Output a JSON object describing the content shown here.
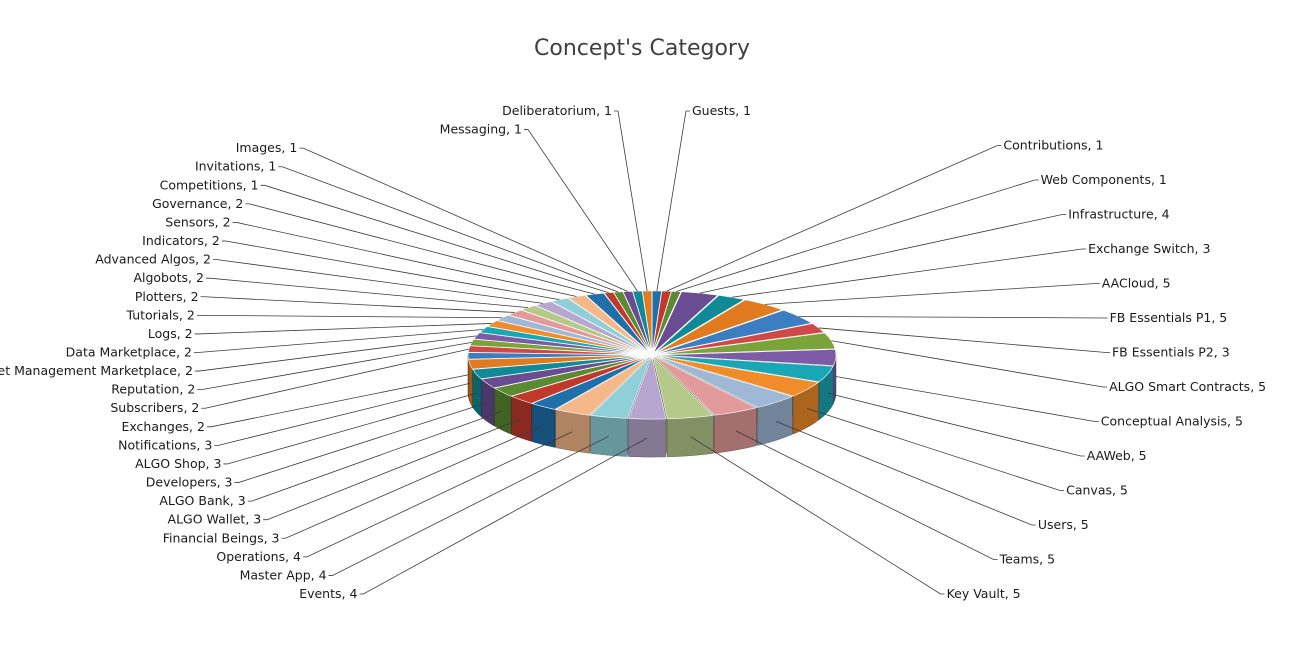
{
  "chart_data": {
    "type": "pie",
    "title": "Concept's Category",
    "legend": "none",
    "slices": [
      {
        "label": "Guests",
        "value": 1
      },
      {
        "label": "Contributions",
        "value": 1
      },
      {
        "label": "Web Components",
        "value": 1
      },
      {
        "label": "Infrastructure",
        "value": 4
      },
      {
        "label": "Exchange Switch",
        "value": 3
      },
      {
        "label": "AACloud",
        "value": 5
      },
      {
        "label": "FB Essentials  P1",
        "value": 5
      },
      {
        "label": "FB Essentials  P2",
        "value": 3
      },
      {
        "label": "ALGO Smart Contracts",
        "value": 5
      },
      {
        "label": "Conceptual Analysis",
        "value": 5
      },
      {
        "label": "AAWeb",
        "value": 5
      },
      {
        "label": "Canvas",
        "value": 5
      },
      {
        "label": "Users",
        "value": 5
      },
      {
        "label": "Teams",
        "value": 5
      },
      {
        "label": "Key Vault",
        "value": 5
      },
      {
        "label": "Events",
        "value": 4
      },
      {
        "label": "Master App",
        "value": 4
      },
      {
        "label": "Operations",
        "value": 4
      },
      {
        "label": "Financial Beings",
        "value": 3
      },
      {
        "label": "ALGO Wallet",
        "value": 3
      },
      {
        "label": "ALGO Bank",
        "value": 3
      },
      {
        "label": "Developers",
        "value": 3
      },
      {
        "label": "ALGO Shop",
        "value": 3
      },
      {
        "label": "Notifications",
        "value": 3
      },
      {
        "label": "Exchanges",
        "value": 2
      },
      {
        "label": "Subscribers",
        "value": 2
      },
      {
        "label": "Reputation",
        "value": 2
      },
      {
        "label": "Asset Management  Marketplace",
        "value": 2
      },
      {
        "label": "Data Marketplace",
        "value": 2
      },
      {
        "label": "Logs",
        "value": 2
      },
      {
        "label": "Tutorials",
        "value": 2
      },
      {
        "label": "Plotters",
        "value": 2
      },
      {
        "label": "Algobots",
        "value": 2
      },
      {
        "label": "Advanced Algos",
        "value": 2
      },
      {
        "label": "Indicators",
        "value": 2
      },
      {
        "label": "Sensors",
        "value": 2
      },
      {
        "label": "Governance",
        "value": 2
      },
      {
        "label": "Competitions",
        "value": 1
      },
      {
        "label": "Invitations",
        "value": 1
      },
      {
        "label": "Images",
        "value": 1
      },
      {
        "label": "Messaging",
        "value": 1
      },
      {
        "label": "Deliberatorium",
        "value": 1
      }
    ],
    "colors": [
      "#1f6fab",
      "#c0392b",
      "#5a8a32",
      "#6a4c93",
      "#0f8a96",
      "#e07b1f",
      "#3b7fc2",
      "#d04848",
      "#7aa33a",
      "#7d5ba6",
      "#1aa7b5",
      "#f08c2a",
      "#9fb8d6",
      "#e39a9a",
      "#b5c98a",
      "#b7a6cf",
      "#8fd0d8",
      "#f5b88a"
    ]
  }
}
